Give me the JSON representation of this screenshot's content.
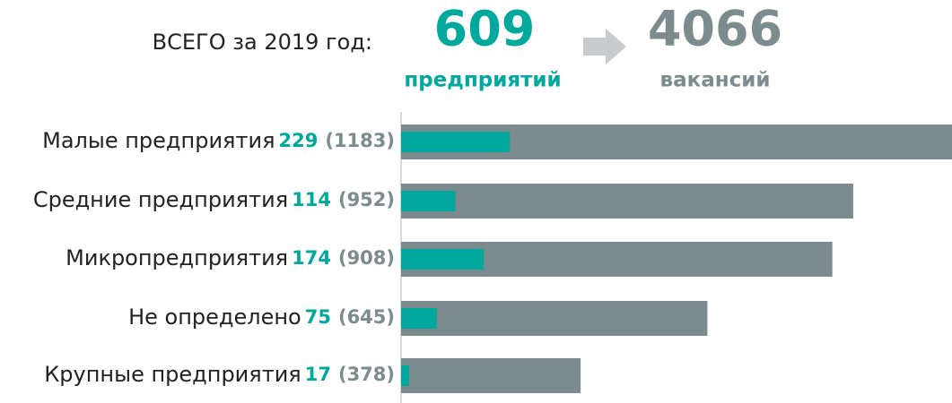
{
  "header": {
    "label": "ВСЕГО за 2019 год:",
    "enterprises_total": 609,
    "vacancies_total": 4066
  },
  "chart_data": {
    "type": "bar",
    "orientation": "horizontal",
    "categories": [
      "Малые предприятия",
      "Средние предприятия",
      "Микропредприятия",
      "Не определено",
      "Крупные предприятия"
    ],
    "series": [
      {
        "name": "предприятий",
        "color": "#00a89d",
        "values": [
          229,
          114,
          174,
          75,
          17
        ]
      },
      {
        "name": "вакансий",
        "color": "#7b8b8e",
        "values": [
          1183,
          952,
          908,
          645,
          378
        ],
        "value_labels": [
          "(1183)",
          "(952)",
          "(908)",
          "(645)",
          "(378)"
        ]
      }
    ],
    "xlim": [
      0,
      1160
    ]
  }
}
